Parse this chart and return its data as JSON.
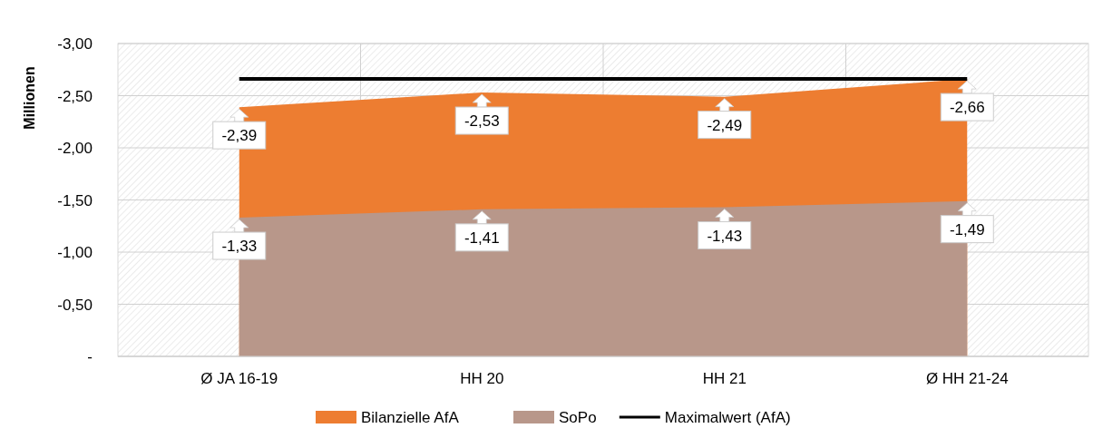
{
  "chart_data": {
    "type": "area",
    "ylabel": "Millionen",
    "categories": [
      "Ø JA 16-19",
      "HH 20",
      "HH 21",
      "Ø HH 21-24"
    ],
    "series": [
      {
        "name": "Bilanzielle AfA",
        "color": "#ed7d31",
        "values": [
          -2.39,
          -2.53,
          -2.49,
          -2.66
        ],
        "value_labels": [
          "-2,39",
          "-2,53",
          "-2,49",
          "-2,66"
        ]
      },
      {
        "name": "SoPo",
        "color": "#b8978a",
        "values": [
          -1.33,
          -1.41,
          -1.43,
          -1.49
        ],
        "value_labels": [
          "-1,33",
          "-1,41",
          "-1,43",
          "-1,49"
        ]
      },
      {
        "name": "Maximalwert (AfA)",
        "type": "line",
        "color": "#000000",
        "values": [
          -2.66,
          -2.66,
          -2.66,
          -2.66
        ]
      }
    ],
    "ylim": [
      0,
      -3
    ],
    "yticks": [
      {
        "value": 0,
        "label": "-"
      },
      {
        "value": -0.5,
        "label": "-0,50"
      },
      {
        "value": -1,
        "label": "-1,00"
      },
      {
        "value": -1.5,
        "label": "-1,50"
      },
      {
        "value": -2,
        "label": "-2,00"
      },
      {
        "value": -2.5,
        "label": "-2,50"
      },
      {
        "value": -3,
        "label": "-3,00"
      }
    ],
    "grid": true,
    "legend": "bottom"
  }
}
